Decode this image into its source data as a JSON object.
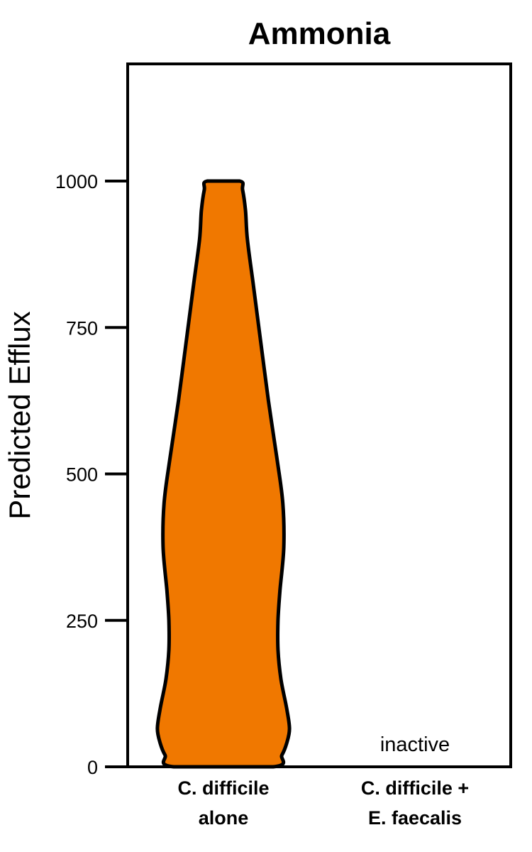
{
  "chart_data": {
    "type": "violin",
    "title": "Ammonia",
    "xlabel": "",
    "ylabel": "Predicted Efflux",
    "ylim": [
      0,
      1200
    ],
    "yticks": [
      0,
      250,
      500,
      750,
      1000
    ],
    "categories": [
      {
        "lines": [
          "C. difficile",
          "alone"
        ]
      },
      {
        "lines": [
          "C. difficile +",
          "E. faecalis"
        ]
      }
    ],
    "series": [
      {
        "category_index": 0,
        "fill": "#f07800",
        "profile": [
          {
            "y": 0,
            "w": 0.52
          },
          {
            "y": 20,
            "w": 0.61
          },
          {
            "y": 40,
            "w": 0.66
          },
          {
            "y": 65,
            "w": 0.69
          },
          {
            "y": 100,
            "w": 0.66
          },
          {
            "y": 150,
            "w": 0.6
          },
          {
            "y": 200,
            "w": 0.57
          },
          {
            "y": 250,
            "w": 0.57
          },
          {
            "y": 300,
            "w": 0.59
          },
          {
            "y": 375,
            "w": 0.63
          },
          {
            "y": 450,
            "w": 0.62
          },
          {
            "y": 525,
            "w": 0.56
          },
          {
            "y": 625,
            "w": 0.47
          },
          {
            "y": 725,
            "w": 0.39
          },
          {
            "y": 825,
            "w": 0.31
          },
          {
            "y": 900,
            "w": 0.25
          },
          {
            "y": 950,
            "w": 0.23
          },
          {
            "y": 985,
            "w": 0.2
          },
          {
            "y": 1000,
            "w": 0.17
          }
        ]
      }
    ],
    "annotations": [
      {
        "category_index": 1,
        "y": 40,
        "text": "inactive"
      }
    ],
    "grid": false,
    "legend": "none"
  }
}
